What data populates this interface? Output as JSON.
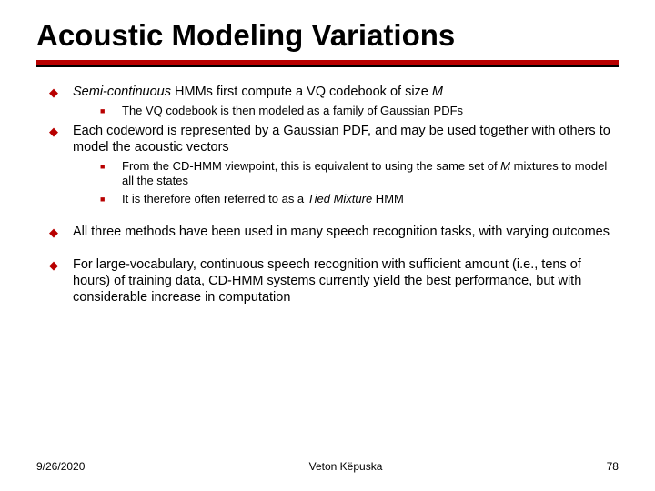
{
  "colors": {
    "accent": "#b80000",
    "text": "#000000",
    "background": "#ffffff"
  },
  "title": "Acoustic Modeling Variations",
  "bullets": {
    "b1_pre": "Semi-continuous",
    "b1_post": " HMMs first compute a VQ codebook of size ",
    "b1_m": "M",
    "b1_1": "The VQ codebook is then modeled as a family of Gaussian PDFs",
    "b2": "Each codeword is represented by a Gaussian PDF, and may be used together with others to model the acoustic vectors",
    "b2_1_pre": "From the CD-HMM viewpoint, this is equivalent to using the same set of ",
    "b2_1_m": "M",
    "b2_1_post": " mixtures to model all the states",
    "b2_2_pre": "It is therefore often referred to as a ",
    "b2_2_em": "Tied Mixture",
    "b2_2_post": " HMM",
    "b3": "All three methods have been used in many speech recognition tasks, with varying outcomes",
    "b4": "For large-vocabulary, continuous speech recognition with sufficient amount (i.e., tens of hours) of training data, CD-HMM systems currently yield the best performance, but with considerable increase in computation"
  },
  "footer": {
    "date": "9/26/2020",
    "author": "Veton Këpuska",
    "page": "78"
  }
}
